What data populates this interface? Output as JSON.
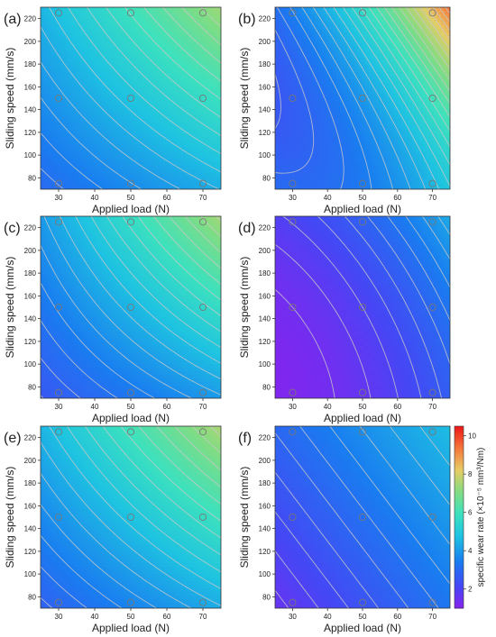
{
  "chart_data": {
    "type": "heatmap",
    "xlabel": "Applied load (N)",
    "ylabel": "Sliding speed (mm/s)",
    "x_ticks": [
      30,
      40,
      50,
      60,
      70
    ],
    "y_ticks": [
      80,
      100,
      120,
      140,
      160,
      180,
      200,
      220
    ],
    "xlim": [
      25,
      75
    ],
    "ylim": [
      70,
      230
    ],
    "design_points": {
      "x": [
        30,
        50,
        70
      ],
      "y": [
        75,
        150,
        225
      ]
    },
    "colorbar": {
      "label": "specific wear rate (×10⁻⁵ mm³/Nm)",
      "ticks": [
        2,
        4,
        6,
        8,
        10
      ],
      "range": [
        1,
        10.5
      ],
      "colormap": "rainbow"
    },
    "panels": [
      {
        "label": "(a)",
        "surface": "linear + interaction",
        "z_at_design_points": [
          {
            "x": 30,
            "y": 75,
            "z": 3.2
          },
          {
            "x": 50,
            "y": 75,
            "z": 3.8
          },
          {
            "x": 70,
            "y": 75,
            "z": 4.3
          },
          {
            "x": 30,
            "y": 150,
            "z": 4.0
          },
          {
            "x": 50,
            "y": 150,
            "z": 4.9
          },
          {
            "x": 70,
            "y": 150,
            "z": 5.8
          },
          {
            "x": 30,
            "y": 225,
            "z": 4.8
          },
          {
            "x": 50,
            "y": 225,
            "z": 5.9
          },
          {
            "x": 70,
            "y": 225,
            "z": 7.0
          }
        ]
      },
      {
        "label": "(b)",
        "surface": "quadratic in load",
        "z_at_design_points": [
          {
            "x": 30,
            "y": 75,
            "z": 2.9
          },
          {
            "x": 50,
            "y": 75,
            "z": 3.5
          },
          {
            "x": 70,
            "y": 75,
            "z": 4.6
          },
          {
            "x": 30,
            "y": 150,
            "z": 2.8
          },
          {
            "x": 50,
            "y": 150,
            "z": 4.0
          },
          {
            "x": 70,
            "y": 150,
            "z": 5.9
          },
          {
            "x": 30,
            "y": 225,
            "z": 3.5
          },
          {
            "x": 50,
            "y": 225,
            "z": 5.4
          },
          {
            "x": 70,
            "y": 225,
            "z": 8.5
          }
        ]
      },
      {
        "label": "(c)",
        "surface": "linear + interaction",
        "z_at_design_points": [
          {
            "x": 30,
            "y": 75,
            "z": 2.8
          },
          {
            "x": 50,
            "y": 75,
            "z": 3.4
          },
          {
            "x": 70,
            "y": 75,
            "z": 4.0
          },
          {
            "x": 30,
            "y": 150,
            "z": 3.5
          },
          {
            "x": 50,
            "y": 150,
            "z": 4.5
          },
          {
            "x": 70,
            "y": 150,
            "z": 5.5
          },
          {
            "x": 30,
            "y": 225,
            "z": 4.4
          },
          {
            "x": 50,
            "y": 225,
            "z": 5.6
          },
          {
            "x": 70,
            "y": 225,
            "z": 7.1
          }
        ]
      },
      {
        "label": "(d)",
        "surface": "quadratic in load",
        "z_at_design_points": [
          {
            "x": 30,
            "y": 75,
            "z": 1.2
          },
          {
            "x": 50,
            "y": 75,
            "z": 1.6
          },
          {
            "x": 70,
            "y": 75,
            "z": 2.5
          },
          {
            "x": 30,
            "y": 150,
            "z": 1.4
          },
          {
            "x": 50,
            "y": 150,
            "z": 2.0
          },
          {
            "x": 70,
            "y": 150,
            "z": 3.0
          },
          {
            "x": 30,
            "y": 225,
            "z": 2.0
          },
          {
            "x": 50,
            "y": 225,
            "z": 2.8
          },
          {
            "x": 70,
            "y": 225,
            "z": 3.9
          }
        ]
      },
      {
        "label": "(e)",
        "surface": "linear + interaction",
        "z_at_design_points": [
          {
            "x": 30,
            "y": 75,
            "z": 3.0
          },
          {
            "x": 50,
            "y": 75,
            "z": 3.7
          },
          {
            "x": 70,
            "y": 75,
            "z": 4.3
          },
          {
            "x": 30,
            "y": 150,
            "z": 3.9
          },
          {
            "x": 50,
            "y": 150,
            "z": 4.8
          },
          {
            "x": 70,
            "y": 150,
            "z": 5.7
          },
          {
            "x": 30,
            "y": 225,
            "z": 4.8
          },
          {
            "x": 50,
            "y": 225,
            "z": 6.0
          },
          {
            "x": 70,
            "y": 225,
            "z": 7.2
          }
        ]
      },
      {
        "label": "(f)",
        "surface": "linear",
        "z_at_design_points": [
          {
            "x": 30,
            "y": 75,
            "z": 1.8
          },
          {
            "x": 50,
            "y": 75,
            "z": 2.5
          },
          {
            "x": 70,
            "y": 75,
            "z": 3.2
          },
          {
            "x": 30,
            "y": 150,
            "z": 2.4
          },
          {
            "x": 50,
            "y": 150,
            "z": 3.1
          },
          {
            "x": 70,
            "y": 150,
            "z": 3.8
          },
          {
            "x": 30,
            "y": 225,
            "z": 3.1
          },
          {
            "x": 50,
            "y": 225,
            "z": 3.8
          },
          {
            "x": 70,
            "y": 225,
            "z": 4.5
          }
        ]
      }
    ]
  }
}
